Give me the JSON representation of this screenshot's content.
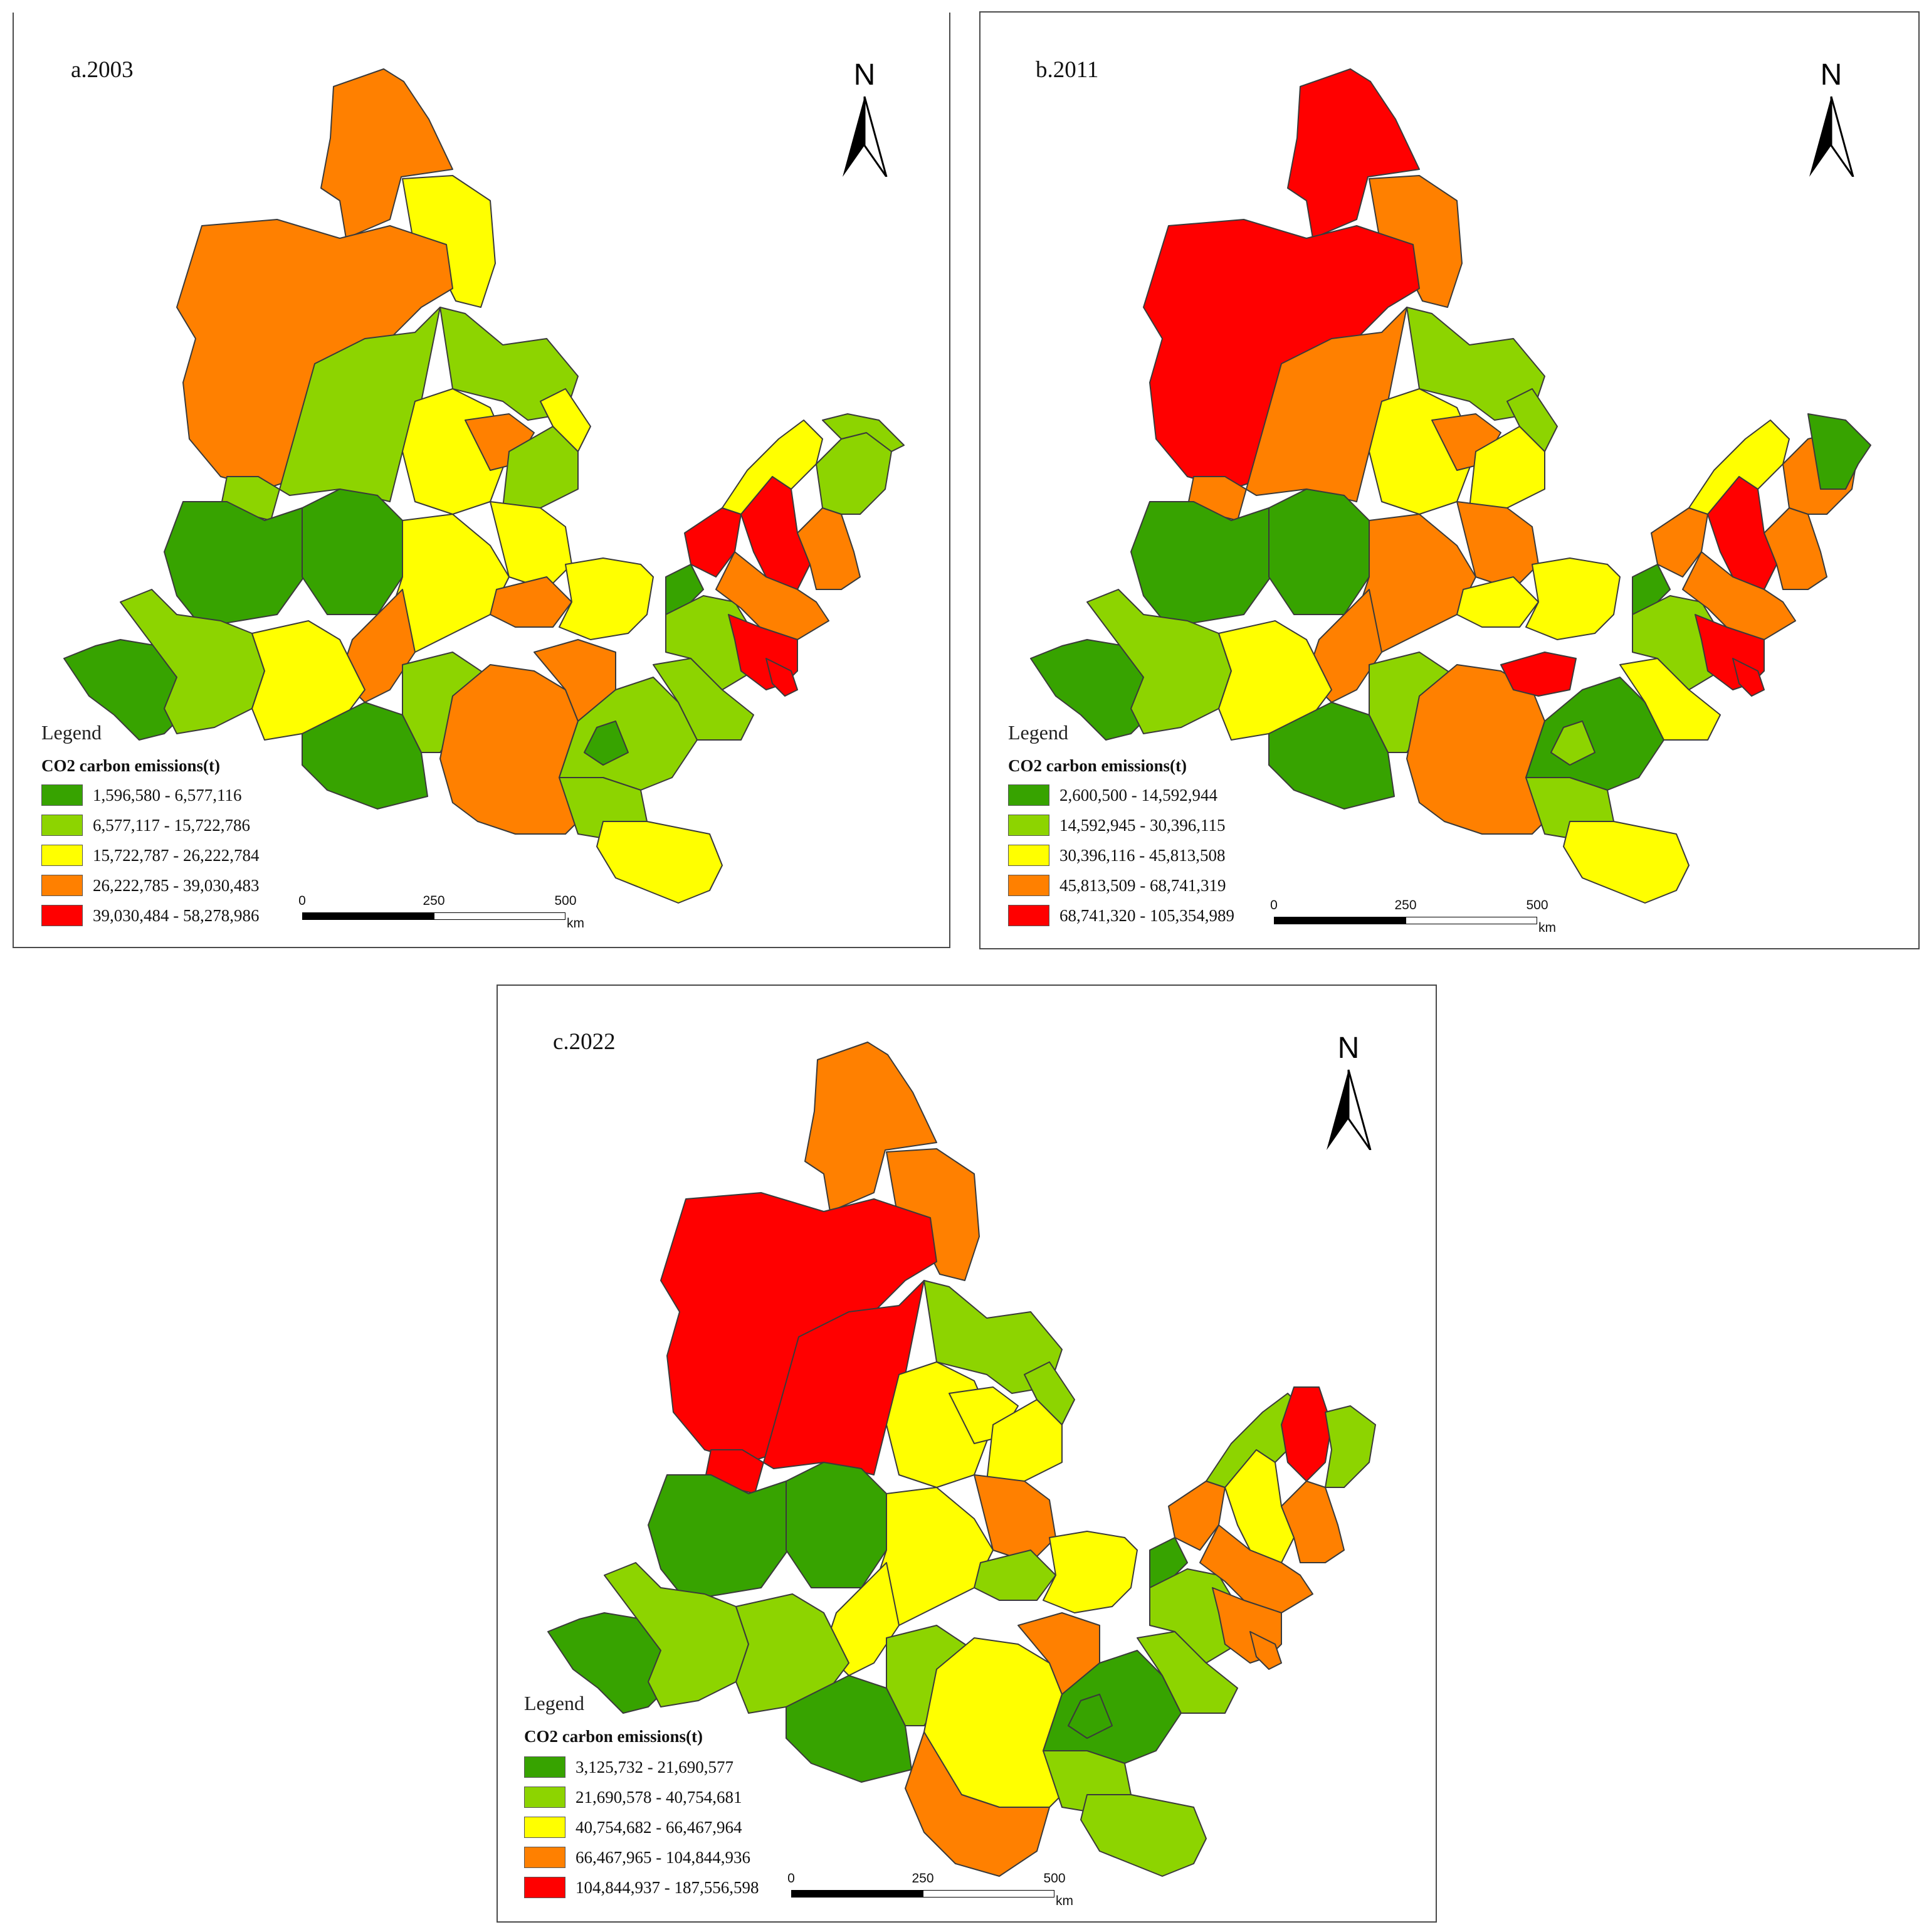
{
  "colors": {
    "class1": "#37a300",
    "class2": "#8dd400",
    "class3": "#ffff00",
    "class4": "#ff8000",
    "class5": "#ff0000"
  },
  "legend_heading": "CO2 carbon emissions(t)",
  "legend_title": "Legend",
  "north_label": "N",
  "scale": {
    "ticks": [
      "0",
      "250",
      "500"
    ],
    "unit": "km"
  },
  "maps": [
    {
      "title": "a.2003",
      "legend": [
        "1,596,580 - 6,577,116",
        "6,577,117 - 15,722,786",
        "15,722,787 - 26,222,784",
        "26,222,785 - 39,030,483",
        "39,030,484 - 58,278,986"
      ]
    },
    {
      "title": "b.2011",
      "legend": [
        "2,600,500 - 14,592,944",
        "14,592,945 - 30,396,115",
        "30,396,116 - 45,813,508",
        "45,813,509 - 68,741,319",
        "68,741,320 - 105,354,989"
      ]
    },
    {
      "title": "c.2022",
      "legend": [
        "3,125,732 - 21,690,577",
        "21,690,578 - 40,754,681",
        "40,754,682 - 66,467,964",
        "66,467,965 - 104,844,936",
        "104,844,937 - 187,556,598"
      ]
    }
  ]
}
